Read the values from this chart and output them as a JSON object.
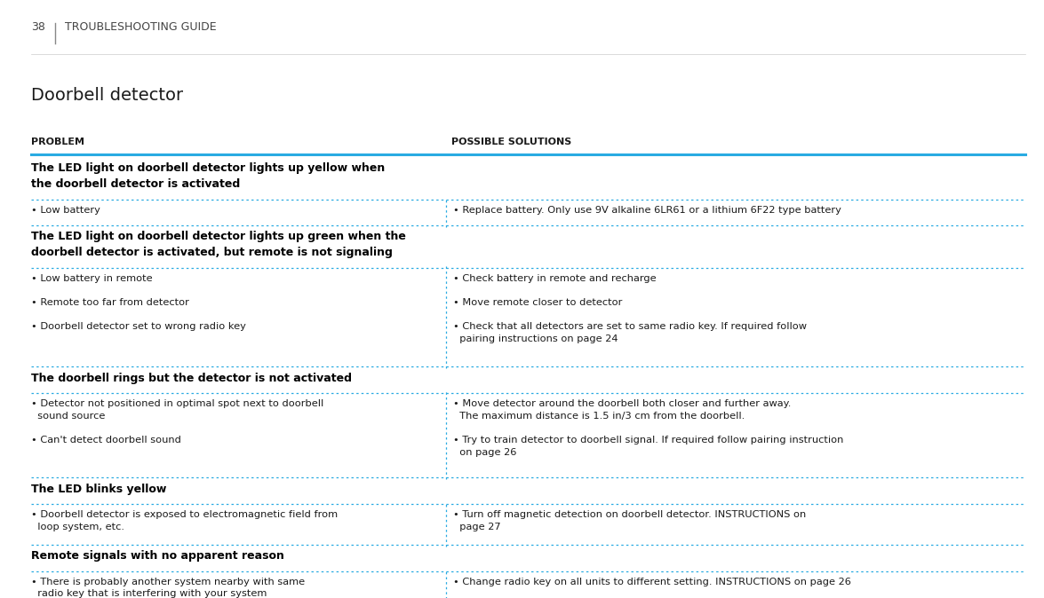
{
  "page_number": "38",
  "header": "TROUBLESHOOTING GUIDE",
  "section_title": "Doorbell detector",
  "col1_header": "PROBLEM",
  "col2_header": "POSSIBLE SOLUTIONS",
  "col_split": 0.42,
  "background_color": "#ffffff",
  "text_color": "#1a1a1a",
  "header_color": "#1a1a1a",
  "bold_color": "#000000",
  "divider_color_solid": "#29abe2",
  "header_top_line_color": "#29abe2",
  "rows": [
    {
      "type": "section_header",
      "text": "The LED light on doorbell detector lights up yellow when\nthe doorbell detector is activated"
    },
    {
      "type": "data",
      "problem": "• Low battery",
      "solution": "• Replace battery. Only use 9V alkaline 6LR61 or a lithium 6F22 type battery",
      "prob_lines": 1,
      "sol_lines": 1
    },
    {
      "type": "section_header",
      "text": "The LED light on doorbell detector lights up green when the\ndoorbell detector is activated, but remote is not signaling"
    },
    {
      "type": "data",
      "problem": "• Low battery in remote\n\n• Remote too far from detector\n\n• Doorbell detector set to wrong radio key",
      "solution": "• Check battery in remote and recharge\n\n• Move remote closer to detector\n\n• Check that all detectors are set to same radio key. If required follow\n  pairing instructions on page 24",
      "prob_lines": 5,
      "sol_lines": 6
    },
    {
      "type": "section_header",
      "text": "The doorbell rings but the detector is not activated"
    },
    {
      "type": "data",
      "problem": "• Detector not positioned in optimal spot next to doorbell\n  sound source\n\n• Can't detect doorbell sound",
      "solution": "• Move detector around the doorbell both closer and further away.\n  The maximum distance is 1.5 in/3 cm from the doorbell.\n\n• Try to train detector to doorbell signal. If required follow pairing instruction\n  on page 26",
      "prob_lines": 4,
      "sol_lines": 5
    },
    {
      "type": "section_header",
      "text": "The LED blinks yellow"
    },
    {
      "type": "data",
      "problem": "• Doorbell detector is exposed to electromagnetic field from\n  loop system, etc.",
      "solution": "• Turn off magnetic detection on doorbell detector. INSTRUCTIONS on\n  page 27",
      "prob_lines": 2,
      "sol_lines": 2
    },
    {
      "type": "section_header",
      "text": "Remote signals with no apparent reason"
    },
    {
      "type": "data",
      "problem": "• There is probably another system nearby with same\n  radio key that is interfering with your system",
      "solution": "• Change radio key on all units to different setting. INSTRUCTIONS on page 26",
      "prob_lines": 2,
      "sol_lines": 1
    }
  ]
}
